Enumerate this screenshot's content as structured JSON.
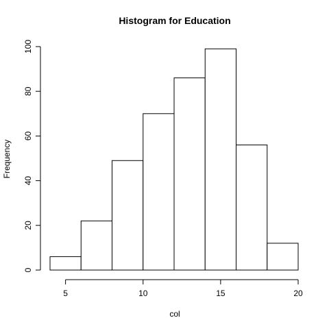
{
  "chart_data": {
    "type": "bar",
    "title": "Histogram for  Education",
    "xlabel": "col",
    "ylabel": "Frequency",
    "bins": [
      {
        "start": 4,
        "end": 6,
        "count": 6
      },
      {
        "start": 6,
        "end": 8,
        "count": 22
      },
      {
        "start": 8,
        "end": 10,
        "count": 49
      },
      {
        "start": 10,
        "end": 12,
        "count": 70
      },
      {
        "start": 12,
        "end": 14,
        "count": 86
      },
      {
        "start": 14,
        "end": 16,
        "count": 99
      },
      {
        "start": 16,
        "end": 18,
        "count": 56
      },
      {
        "start": 18,
        "end": 20,
        "count": 12
      }
    ],
    "xticks": [
      5,
      10,
      15,
      20
    ],
    "yticks": [
      0,
      20,
      40,
      60,
      80,
      100
    ],
    "xlim": [
      4,
      20
    ],
    "ylim": [
      0,
      100
    ],
    "grid": false
  }
}
